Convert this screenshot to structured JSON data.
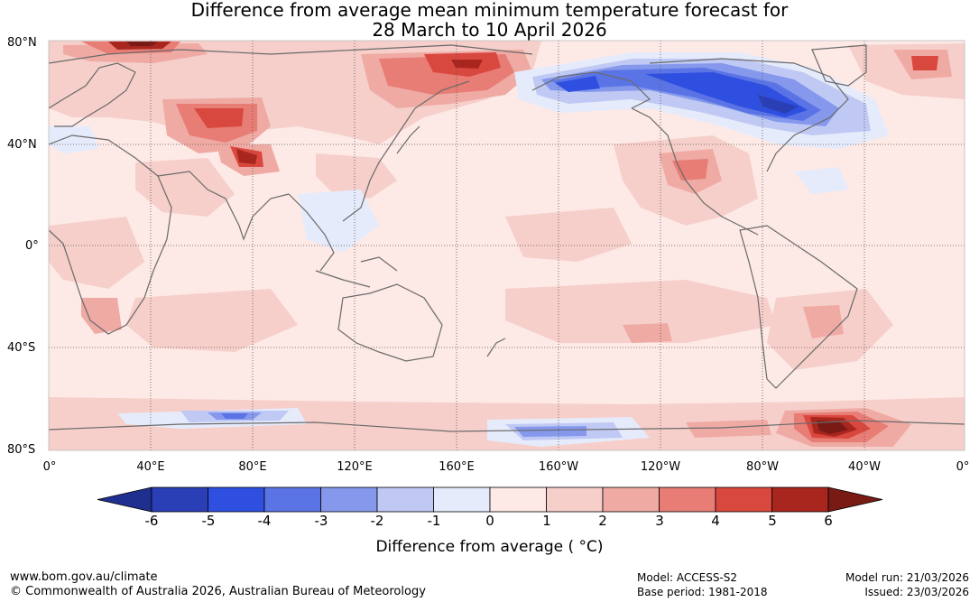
{
  "title": {
    "line1": "Difference from average mean minimum temperature forecast for",
    "line2": "28 March to 10 April 2026"
  },
  "axes": {
    "lat_labels": [
      "80°N",
      "40°N",
      "0°",
      "40°S",
      "80°S"
    ],
    "lon_labels": [
      "0°",
      "40°E",
      "80°E",
      "120°E",
      "160°E",
      "160°W",
      "120°W",
      "80°W",
      "40°W",
      "0°"
    ]
  },
  "colorbar": {
    "ticks": [
      "-6",
      "-5",
      "-4",
      "-3",
      "-2",
      "-1",
      "0",
      "1",
      "2",
      "3",
      "4",
      "5",
      "6"
    ],
    "colors": [
      "#1f2f8f",
      "#2a3fb5",
      "#2f4fe0",
      "#5a74e6",
      "#8598ec",
      "#bfc9f4",
      "#e6ebfb",
      "#fde9e6",
      "#f6cfca",
      "#efaaa4",
      "#e77d75",
      "#d9483e",
      "#a9261f",
      "#7a1a14"
    ],
    "label": "Difference from average ( °C)"
  },
  "footer": {
    "site": "www.bom.gov.au/climate",
    "copyright": "© Commonwealth of Australia 2026, Australian Bureau of Meteorology",
    "model": "Model: ACCESS-S2",
    "base_period": "Base period: 1981-2018",
    "model_run": "Model run: 21/03/2026",
    "issued": "Issued: 23/03/2026"
  }
}
